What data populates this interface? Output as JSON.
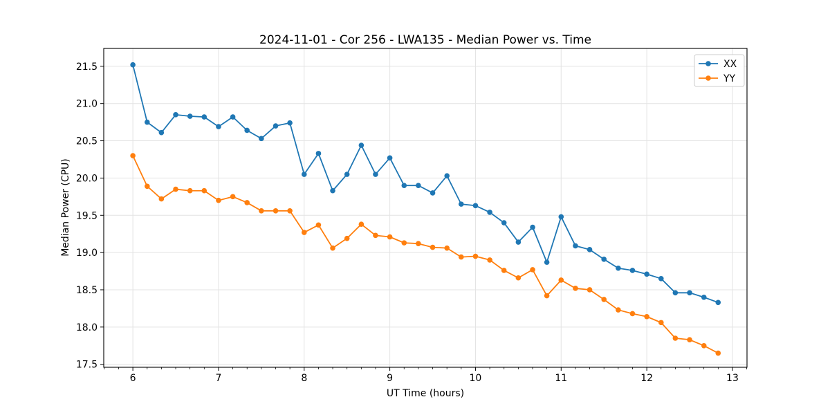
{
  "figure": {
    "title": "2024-11-01 - Cor 256 - LWA135 - Median Power vs. Time",
    "xlabel": "UT Time (hours)",
    "ylabel": "Median Power (CPU)"
  },
  "colors": {
    "series_xx": "#1f77b4",
    "series_yy": "#ff7f0e",
    "grid": "#e3e3e3",
    "spine": "#000000",
    "legend_border": "#cccccc",
    "background": "#ffffff"
  },
  "legend": {
    "items": [
      {
        "label": "XX",
        "color": "#1f77b4"
      },
      {
        "label": "YY",
        "color": "#ff7f0e"
      }
    ],
    "position": "upper right"
  },
  "chart_data": {
    "type": "line",
    "title": "2024-11-01 - Cor 256 - LWA135 - Median Power vs. Time",
    "xlabel": "UT Time (hours)",
    "ylabel": "Median Power (CPU)",
    "grid": true,
    "legend_position": "upper right",
    "xlim": [
      5.66,
      13.17
    ],
    "ylim": [
      17.46,
      21.74
    ],
    "xticks": [
      6,
      7,
      8,
      9,
      10,
      11,
      12,
      13
    ],
    "xtick_labels": [
      "6",
      "7",
      "8",
      "9",
      "10",
      "11",
      "12",
      "13"
    ],
    "yticks": [
      17.5,
      18.0,
      18.5,
      19.0,
      19.5,
      20.0,
      20.5,
      21.0,
      21.5
    ],
    "ytick_labels": [
      "17.5",
      "18.0",
      "18.5",
      "19.0",
      "19.5",
      "20.0",
      "20.5",
      "21.0",
      "21.5"
    ],
    "x_minor_tick_interval_hours": 0.1667,
    "marker": "circle",
    "x": [
      6.0,
      6.167,
      6.333,
      6.5,
      6.667,
      6.833,
      7.0,
      7.167,
      7.333,
      7.5,
      7.667,
      7.833,
      8.0,
      8.167,
      8.333,
      8.5,
      8.667,
      8.833,
      9.0,
      9.167,
      9.333,
      9.5,
      9.667,
      9.833,
      10.0,
      10.167,
      10.333,
      10.5,
      10.667,
      10.833,
      11.0,
      11.167,
      11.333,
      11.5,
      11.667,
      11.833,
      12.0,
      12.167,
      12.333,
      12.5,
      12.667,
      12.833
    ],
    "series": [
      {
        "name": "XX",
        "color": "#1f77b4",
        "values": [
          21.52,
          20.75,
          20.61,
          20.85,
          20.83,
          20.82,
          20.69,
          20.82,
          20.64,
          20.53,
          20.7,
          20.74,
          20.05,
          20.33,
          19.83,
          20.05,
          20.44,
          20.05,
          20.27,
          19.9,
          19.9,
          19.8,
          20.03,
          19.65,
          19.63,
          19.54,
          19.4,
          19.14,
          19.34,
          18.87,
          19.48,
          19.09,
          19.04,
          18.91,
          18.79,
          18.76,
          18.71,
          18.65,
          18.46,
          18.46,
          18.4,
          18.33
        ]
      },
      {
        "name": "YY",
        "color": "#ff7f0e",
        "values": [
          20.3,
          19.89,
          19.72,
          19.85,
          19.83,
          19.83,
          19.7,
          19.75,
          19.67,
          19.56,
          19.56,
          19.56,
          19.27,
          19.37,
          19.06,
          19.19,
          19.38,
          19.23,
          19.21,
          19.13,
          19.12,
          19.07,
          19.06,
          18.94,
          18.95,
          18.9,
          18.76,
          18.66,
          18.77,
          18.42,
          18.63,
          18.52,
          18.5,
          18.37,
          18.23,
          18.18,
          18.14,
          18.06,
          17.85,
          17.83,
          17.75,
          17.65
        ]
      }
    ]
  }
}
